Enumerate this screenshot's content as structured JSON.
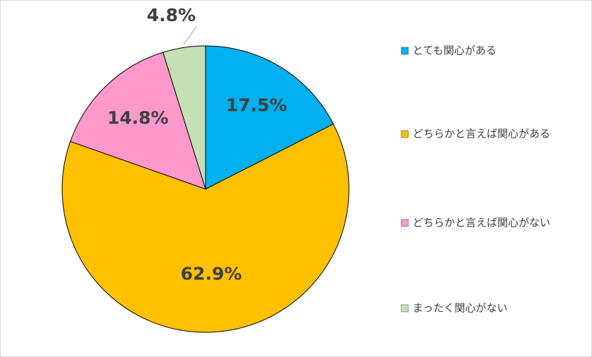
{
  "chart_data": {
    "type": "pie",
    "categories": [
      "とても関心がある",
      "どちらかと言えば関心がある",
      "どちらかと言えば関心がない",
      "まったく関心がない"
    ],
    "values": [
      17.5,
      62.9,
      14.8,
      4.8
    ],
    "value_labels": [
      "17.5%",
      "62.9%",
      "14.8%",
      "4.8%"
    ],
    "colors": [
      "#00b0f0",
      "#ffc000",
      "#ff99cc",
      "#c5e0b4"
    ],
    "legend": "right"
  }
}
